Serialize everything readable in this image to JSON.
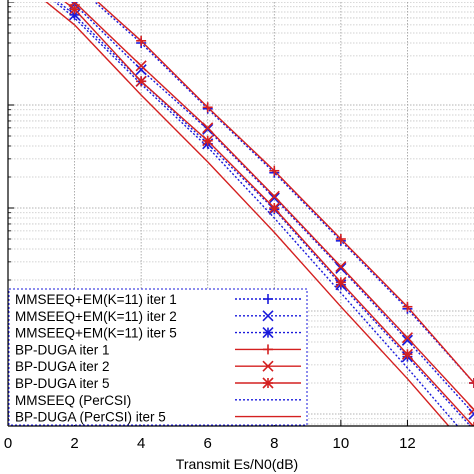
{
  "chart_data": {
    "type": "line",
    "title": "",
    "xlabel": "Transmit Es/N0(dB)",
    "ylabel": "",
    "xlim": [
      0,
      14
    ],
    "y_scale": "log",
    "grid": true,
    "legend_position": "bottom-left",
    "x_ticks": [
      "0",
      "2",
      "4",
      "6",
      "8",
      "10",
      "12"
    ],
    "series": [
      {
        "name": "MMSEEQ+EM(K=11) iter 1",
        "color": "#1a1adb",
        "dash": "dotted",
        "marker": "plus",
        "x": [
          0,
          2,
          4,
          6,
          8,
          10,
          12,
          14
        ],
        "y": [
          0.4,
          0.15,
          0.04,
          0.0092,
          0.0022,
          0.00048,
          0.000105,
          2e-05
        ]
      },
      {
        "name": "MMSEEQ+EM(K=11) iter 2",
        "color": "#1a1adb",
        "dash": "dotted",
        "marker": "x",
        "x": [
          0,
          2,
          4,
          6,
          8,
          10,
          12,
          14
        ],
        "y": [
          0.32,
          0.095,
          0.022,
          0.0058,
          0.00125,
          0.00026,
          5.2e-05,
          1e-05
        ]
      },
      {
        "name": "MMSEEQ+EM(K=11) iter 5",
        "color": "#1a1adb",
        "dash": "dotted",
        "marker": "asterisk",
        "x": [
          0,
          2,
          4,
          6,
          8,
          10,
          12,
          14
        ],
        "y": [
          0.25,
          0.075,
          0.017,
          0.0042,
          0.00097,
          0.00018,
          3.6e-05,
          7e-06
        ]
      },
      {
        "name": "BP-DUGA iter 1",
        "color": "#d42020",
        "dash": "solid",
        "marker": "plus",
        "x": [
          0,
          2,
          4,
          6,
          8,
          10,
          12,
          14
        ],
        "y": [
          0.42,
          0.16,
          0.042,
          0.0095,
          0.0023,
          0.0005,
          0.00011,
          2e-05
        ]
      },
      {
        "name": "BP-DUGA iter 2",
        "color": "#d42020",
        "dash": "solid",
        "marker": "x",
        "x": [
          0,
          2,
          4,
          6,
          8,
          10,
          12,
          14
        ],
        "y": [
          0.34,
          0.1,
          0.024,
          0.006,
          0.0013,
          0.00027,
          5.5e-05,
          1.1e-05
        ]
      },
      {
        "name": "BP-DUGA iter 5",
        "color": "#d42020",
        "dash": "solid",
        "marker": "asterisk",
        "x": [
          0,
          2,
          4,
          6,
          8,
          10,
          12,
          14
        ],
        "y": [
          0.27,
          0.085,
          0.017,
          0.0045,
          0.001,
          0.00019,
          3.8e-05,
          7.5e-06
        ]
      },
      {
        "name": "MMSEEQ (PerCSI)",
        "color": "#1a1adb",
        "dash": "dotted",
        "marker": "none",
        "x": [
          0,
          2,
          4,
          6,
          8,
          10,
          12,
          14
        ],
        "y": [
          0.24,
          0.07,
          0.016,
          0.0039,
          0.0008,
          0.00015,
          2.8e-05,
          5e-06
        ]
      },
      {
        "name": "BP-DUGA (PerCSI) iter 5",
        "color": "#d42020",
        "dash": "solid",
        "marker": "none",
        "x": [
          0,
          2,
          4,
          6,
          8,
          10,
          12,
          14
        ],
        "y": [
          0.2,
          0.06,
          0.0125,
          0.0028,
          0.00058,
          0.00011,
          2.2e-05,
          4e-06
        ]
      }
    ]
  }
}
